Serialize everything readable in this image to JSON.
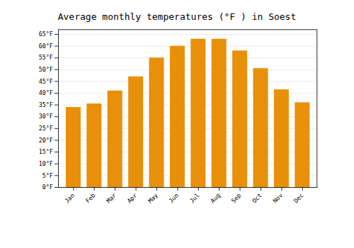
{
  "chart_data": {
    "type": "bar",
    "title": "Average monthly temperatures (°F ) in Soest",
    "categories": [
      "Jan",
      "Feb",
      "Mar",
      "Apr",
      "May",
      "Jun",
      "Jul",
      "Aug",
      "Sep",
      "Oct",
      "Nov",
      "Dec"
    ],
    "values": [
      34,
      35.5,
      41,
      47,
      55,
      60,
      63,
      63,
      58,
      50.5,
      41.5,
      36
    ],
    "color": "#E8900A",
    "ylim": [
      0,
      67
    ],
    "yticks": [
      {
        "value": 0,
        "label": "0°F"
      },
      {
        "value": 5,
        "label": "5°F"
      },
      {
        "value": 10,
        "label": "10°F"
      },
      {
        "value": 15,
        "label": "15°F"
      },
      {
        "value": 20,
        "label": "20°F"
      },
      {
        "value": 25,
        "label": "25°F"
      },
      {
        "value": 30,
        "label": "30°F"
      },
      {
        "value": 35,
        "label": "35°F"
      },
      {
        "value": 40,
        "label": "40°F"
      },
      {
        "value": 45,
        "label": "45°F"
      },
      {
        "value": 50,
        "label": "50°F"
      },
      {
        "value": 55,
        "label": "55°F"
      },
      {
        "value": 60,
        "label": "60°F"
      },
      {
        "value": 65,
        "label": "65°F"
      }
    ],
    "grid": true
  }
}
